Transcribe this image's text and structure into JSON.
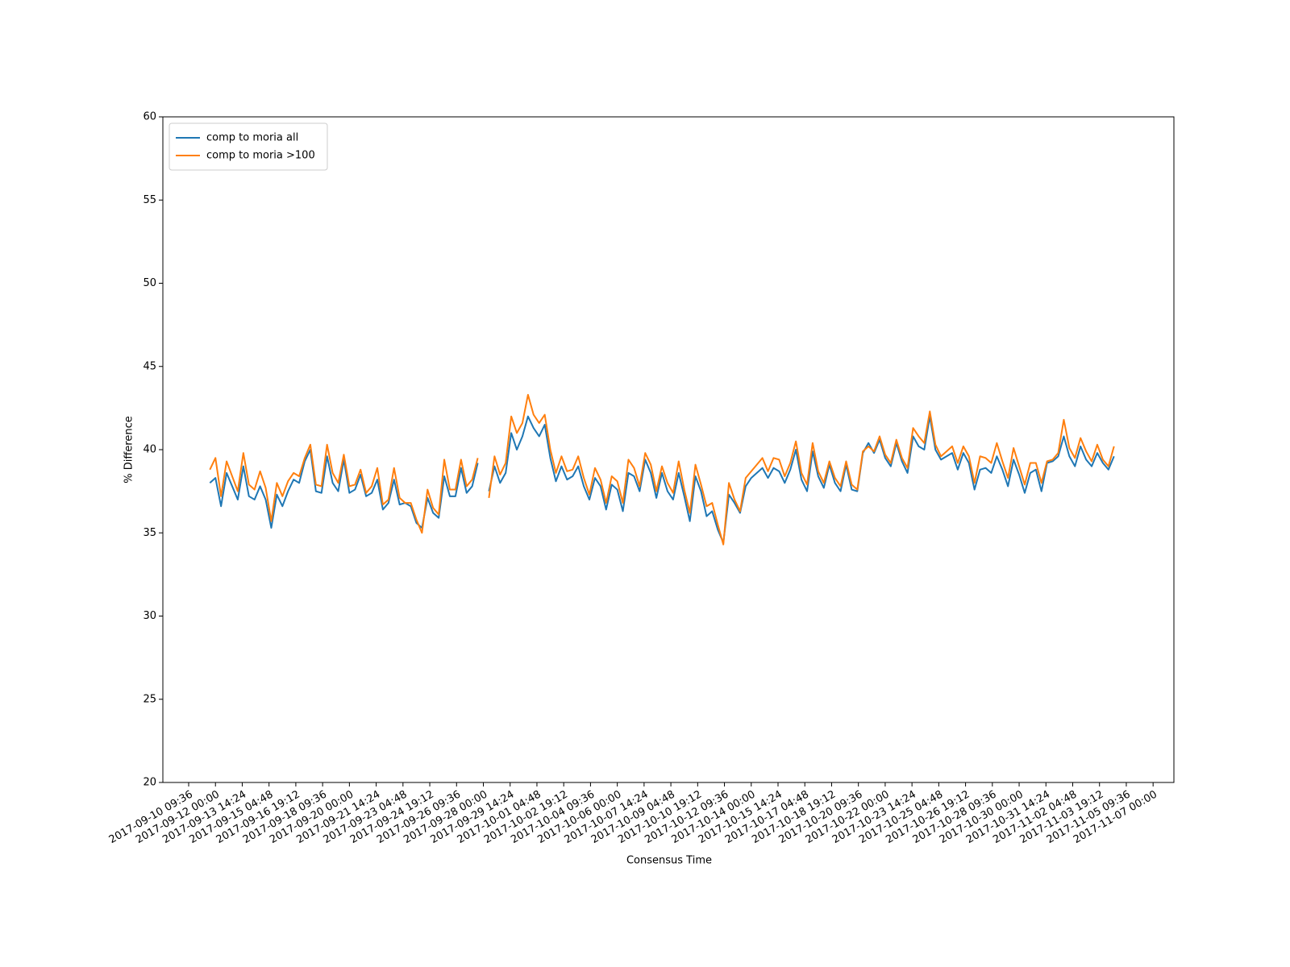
{
  "chart_data": {
    "type": "line",
    "xlabel": "Consensus Time",
    "ylabel": "% Difference",
    "xlim": [
      "2017-09-08 20:37",
      "2017-11-08 05:50"
    ],
    "ylim": [
      20,
      60
    ],
    "yticks": [
      20,
      25,
      30,
      35,
      40,
      45,
      50,
      55,
      60
    ],
    "xticks": [
      "2017-09-10 09:36",
      "2017-09-12 00:00",
      "2017-09-13 14:24",
      "2017-09-15 04:48",
      "2017-09-16 19:12",
      "2017-09-18 09:36",
      "2017-09-20 00:00",
      "2017-09-21 14:24",
      "2017-09-23 04:48",
      "2017-09-24 19:12",
      "2017-09-26 09:36",
      "2017-09-28 00:00",
      "2017-09-29 14:24",
      "2017-10-01 04:48",
      "2017-10-02 19:12",
      "2017-10-04 09:36",
      "2017-10-06 00:00",
      "2017-10-07 14:24",
      "2017-10-09 04:48",
      "2017-10-10 19:12",
      "2017-10-12 09:36",
      "2017-10-14 00:00",
      "2017-10-15 14:24",
      "2017-10-17 04:48",
      "2017-10-18 19:12",
      "2017-10-20 09:36",
      "2017-10-22 00:00",
      "2017-10-23 14:24",
      "2017-10-25 04:48",
      "2017-10-26 19:12",
      "2017-10-28 09:36",
      "2017-10-30 00:00",
      "2017-10-31 14:24",
      "2017-11-02 04:48",
      "2017-11-03 19:12",
      "2017-11-05 09:36",
      "2017-11-07 00:00"
    ],
    "legend": "upper left",
    "grid": false,
    "x": [
      "2017-09-11 16:00",
      "2017-09-12 00:00",
      "2017-09-12 08:00",
      "2017-09-12 16:00",
      "2017-09-13 00:00",
      "2017-09-13 08:00",
      "2017-09-13 16:00",
      "2017-09-14 00:00",
      "2017-09-14 08:00",
      "2017-09-14 16:00",
      "2017-09-15 00:00",
      "2017-09-15 08:00",
      "2017-09-15 16:00",
      "2017-09-16 00:00",
      "2017-09-16 08:00",
      "2017-09-16 16:00",
      "2017-09-17 00:00",
      "2017-09-17 08:00",
      "2017-09-17 16:00",
      "2017-09-18 00:00",
      "2017-09-18 08:00",
      "2017-09-18 16:00",
      "2017-09-19 00:00",
      "2017-09-19 08:00",
      "2017-09-19 16:00",
      "2017-09-20 00:00",
      "2017-09-20 08:00",
      "2017-09-20 16:00",
      "2017-09-21 00:00",
      "2017-09-21 08:00",
      "2017-09-21 16:00",
      "2017-09-22 00:00",
      "2017-09-22 08:00",
      "2017-09-22 16:00",
      "2017-09-23 00:00",
      "2017-09-23 08:00",
      "2017-09-23 16:00",
      "2017-09-24 00:00",
      "2017-09-24 08:00",
      "2017-09-24 16:00",
      "2017-09-25 00:00",
      "2017-09-25 08:00",
      "2017-09-25 16:00",
      "2017-09-26 00:00",
      "2017-09-26 08:00",
      "2017-09-26 16:00",
      "2017-09-27 00:00",
      "2017-09-27 08:00",
      "2017-09-27 16:00",
      "2017-09-28 00:00",
      "2017-09-28 08:00",
      "2017-09-28 16:00",
      "2017-09-29 00:00",
      "2017-09-29 08:00",
      "2017-09-29 16:00",
      "2017-09-30 00:00",
      "2017-09-30 08:00",
      "2017-09-30 16:00",
      "2017-10-01 00:00",
      "2017-10-01 08:00",
      "2017-10-01 16:00",
      "2017-10-02 00:00",
      "2017-10-02 08:00",
      "2017-10-02 16:00",
      "2017-10-03 00:00",
      "2017-10-03 08:00",
      "2017-10-03 16:00",
      "2017-10-04 00:00",
      "2017-10-04 08:00",
      "2017-10-04 16:00",
      "2017-10-05 00:00",
      "2017-10-05 08:00",
      "2017-10-05 16:00",
      "2017-10-06 00:00",
      "2017-10-06 08:00",
      "2017-10-06 16:00",
      "2017-10-07 00:00",
      "2017-10-07 08:00",
      "2017-10-07 16:00",
      "2017-10-08 00:00",
      "2017-10-08 08:00",
      "2017-10-08 16:00",
      "2017-10-09 00:00",
      "2017-10-09 08:00",
      "2017-10-09 16:00",
      "2017-10-10 00:00",
      "2017-10-10 08:00",
      "2017-10-10 16:00",
      "2017-10-11 00:00",
      "2017-10-11 08:00",
      "2017-10-11 16:00",
      "2017-10-12 00:00",
      "2017-10-12 08:00",
      "2017-10-12 16:00",
      "2017-10-13 00:00",
      "2017-10-13 08:00",
      "2017-10-13 16:00",
      "2017-10-14 00:00",
      "2017-10-14 08:00",
      "2017-10-14 16:00",
      "2017-10-15 00:00",
      "2017-10-15 08:00",
      "2017-10-15 16:00",
      "2017-10-16 00:00",
      "2017-10-16 08:00",
      "2017-10-16 16:00",
      "2017-10-17 00:00",
      "2017-10-17 08:00",
      "2017-10-17 16:00",
      "2017-10-18 00:00",
      "2017-10-18 08:00",
      "2017-10-18 16:00",
      "2017-10-19 00:00",
      "2017-10-19 08:00",
      "2017-10-19 16:00",
      "2017-10-20 00:00",
      "2017-10-20 08:00",
      "2017-10-20 16:00",
      "2017-10-21 00:00",
      "2017-10-21 08:00",
      "2017-10-21 16:00",
      "2017-10-22 00:00",
      "2017-10-22 08:00",
      "2017-10-22 16:00",
      "2017-10-23 00:00",
      "2017-10-23 08:00",
      "2017-10-23 16:00",
      "2017-10-24 00:00",
      "2017-10-24 08:00",
      "2017-10-24 16:00",
      "2017-10-25 00:00",
      "2017-10-25 08:00",
      "2017-10-25 16:00",
      "2017-10-26 00:00",
      "2017-10-26 08:00",
      "2017-10-26 16:00",
      "2017-10-27 00:00",
      "2017-10-27 08:00",
      "2017-10-27 16:00",
      "2017-10-28 00:00",
      "2017-10-28 08:00",
      "2017-10-28 16:00",
      "2017-10-29 00:00",
      "2017-10-29 08:00",
      "2017-10-29 16:00",
      "2017-10-30 00:00",
      "2017-10-30 08:00",
      "2017-10-30 16:00",
      "2017-10-31 00:00",
      "2017-10-31 08:00",
      "2017-10-31 16:00",
      "2017-11-01 00:00",
      "2017-11-01 08:00",
      "2017-11-01 16:00",
      "2017-11-02 00:00",
      "2017-11-02 08:00",
      "2017-11-02 16:00",
      "2017-11-03 00:00",
      "2017-11-03 08:00",
      "2017-11-03 16:00",
      "2017-11-04 00:00",
      "2017-11-04 08:00",
      "2017-11-04 16:00"
    ],
    "series": [
      {
        "name": "comp to moria all",
        "color": "#1f77b4",
        "values": [
          38.0,
          38.3,
          36.6,
          38.6,
          37.8,
          37.0,
          39.0,
          37.2,
          37.0,
          37.8,
          37.0,
          35.3,
          37.3,
          36.6,
          37.5,
          38.2,
          38.0,
          39.3,
          40.0,
          37.5,
          37.4,
          39.6,
          38.0,
          37.5,
          39.4,
          37.4,
          37.6,
          38.5,
          37.2,
          37.4,
          38.2,
          36.4,
          36.8,
          38.2,
          36.7,
          36.8,
          36.6,
          35.6,
          35.3,
          37.1,
          36.2,
          35.9,
          38.4,
          37.2,
          37.2,
          38.9,
          37.4,
          37.8,
          39.2,
          null,
          37.5,
          39.0,
          38.0,
          38.6,
          41.0,
          40.0,
          40.8,
          42.0,
          41.3,
          40.8,
          41.5,
          39.5,
          38.1,
          39.0,
          38.2,
          38.4,
          39.0,
          37.8,
          37.0,
          38.3,
          37.8,
          36.4,
          37.9,
          37.6,
          36.3,
          38.6,
          38.4,
          37.5,
          39.4,
          38.6,
          37.1,
          38.6,
          37.5,
          37.0,
          38.6,
          37.2,
          35.7,
          38.4,
          37.5,
          36.0,
          36.3,
          35.2,
          34.4,
          37.3,
          36.8,
          36.2,
          37.8,
          38.3,
          38.6,
          38.9,
          38.3,
          38.9,
          38.7,
          38.0,
          38.8,
          40.0,
          38.2,
          37.5,
          39.9,
          38.4,
          37.7,
          39.1,
          38.0,
          37.5,
          39.1,
          37.6,
          37.5,
          39.8,
          40.4,
          39.8,
          40.6,
          39.5,
          39.0,
          40.4,
          39.3,
          38.6,
          40.8,
          40.2,
          40.0,
          42.0,
          40.0,
          39.4,
          39.6,
          39.8,
          38.8,
          39.8,
          39.2,
          37.6,
          38.8,
          38.9,
          38.6,
          39.6,
          38.8,
          37.8,
          39.4,
          38.5,
          37.4,
          38.6,
          38.8,
          37.5,
          39.2,
          39.3,
          39.6,
          40.8,
          39.6,
          39.0,
          40.2,
          39.4,
          39.0,
          39.8,
          39.2,
          38.8,
          39.6
        ]
      },
      {
        "name": "comp to moria >100",
        "color": "#ff7f0e",
        "values": [
          38.8,
          39.5,
          37.2,
          39.3,
          38.4,
          37.5,
          39.8,
          37.9,
          37.6,
          38.7,
          37.7,
          35.7,
          38.0,
          37.2,
          38.1,
          38.6,
          38.4,
          39.5,
          40.3,
          37.9,
          37.8,
          40.3,
          38.6,
          38.0,
          39.7,
          37.8,
          37.9,
          38.8,
          37.4,
          37.8,
          38.9,
          36.7,
          37.0,
          38.9,
          37.1,
          36.8,
          36.8,
          35.8,
          35.0,
          37.6,
          36.5,
          36.1,
          39.4,
          37.6,
          37.6,
          39.4,
          37.8,
          38.2,
          39.5,
          null,
          37.1,
          39.6,
          38.5,
          39.2,
          42.0,
          41.0,
          41.6,
          43.3,
          42.1,
          41.6,
          42.1,
          40.0,
          38.6,
          39.6,
          38.7,
          38.8,
          39.6,
          38.3,
          37.3,
          38.9,
          38.2,
          36.8,
          38.4,
          38.1,
          36.8,
          39.4,
          38.9,
          37.8,
          39.8,
          39.1,
          37.5,
          39.0,
          38.0,
          37.4,
          39.3,
          37.6,
          36.2,
          39.1,
          37.9,
          36.6,
          36.8,
          35.5,
          34.3,
          38.0,
          37.0,
          36.3,
          38.3,
          38.7,
          39.1,
          39.5,
          38.7,
          39.5,
          39.4,
          38.4,
          39.2,
          40.5,
          38.6,
          37.9,
          40.4,
          38.7,
          38.0,
          39.3,
          38.3,
          37.8,
          39.3,
          37.9,
          37.6,
          39.9,
          40.2,
          39.9,
          40.8,
          39.7,
          39.2,
          40.6,
          39.5,
          38.9,
          41.3,
          40.8,
          40.4,
          42.3,
          40.3,
          39.6,
          39.9,
          40.2,
          39.2,
          40.2,
          39.6,
          38.0,
          39.6,
          39.5,
          39.2,
          40.4,
          39.3,
          38.3,
          40.1,
          39.0,
          37.9,
          39.2,
          39.2,
          38.0,
          39.3,
          39.4,
          39.8,
          41.8,
          40.1,
          39.5,
          40.7,
          39.9,
          39.3,
          40.3,
          39.4,
          39.0,
          40.2
        ]
      }
    ]
  }
}
